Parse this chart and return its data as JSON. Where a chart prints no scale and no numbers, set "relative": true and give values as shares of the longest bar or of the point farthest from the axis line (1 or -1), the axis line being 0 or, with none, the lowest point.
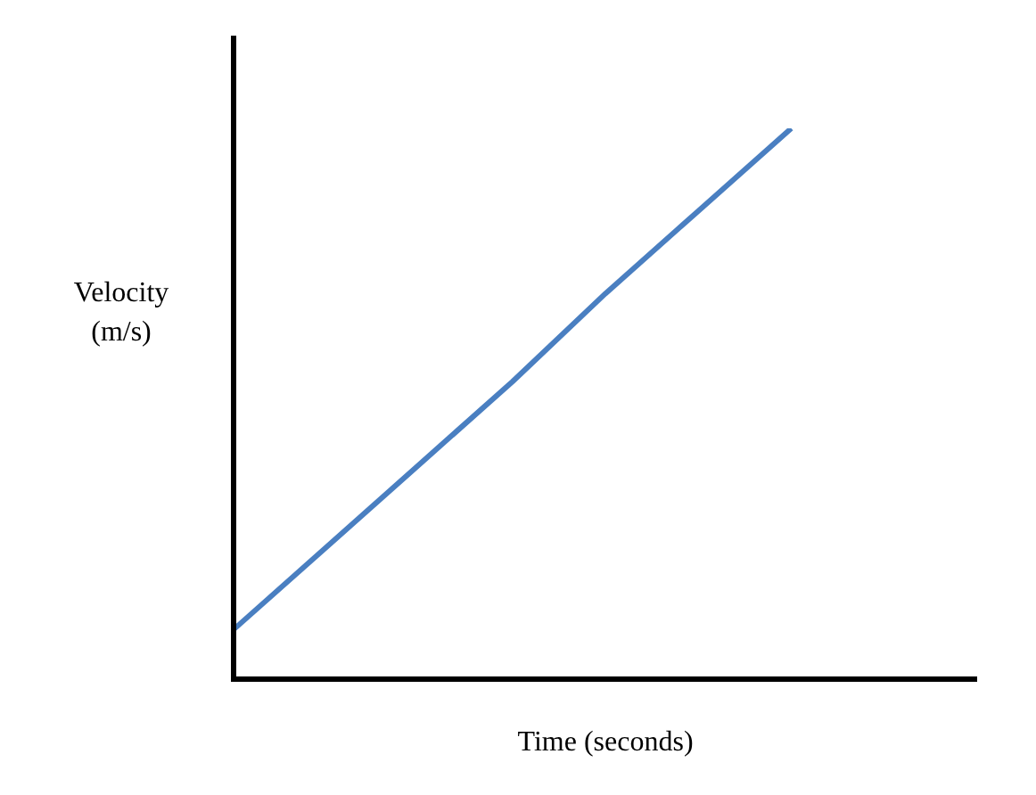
{
  "chart_data": {
    "type": "line",
    "xlabel": "Time (seconds)",
    "ylabel": "Velocity\n(m/s)",
    "relative": true,
    "categories": [
      null,
      null,
      null,
      null,
      null,
      null,
      null,
      null,
      null
    ],
    "series": [
      {
        "color": "#4a7fc1",
        "values": [
          0.09,
          0.24,
          0.39,
          0.54,
          0.7,
          0.85,
          1,
          null,
          null
        ]
      }
    ],
    "legend": false,
    "marker": "none"
  }
}
